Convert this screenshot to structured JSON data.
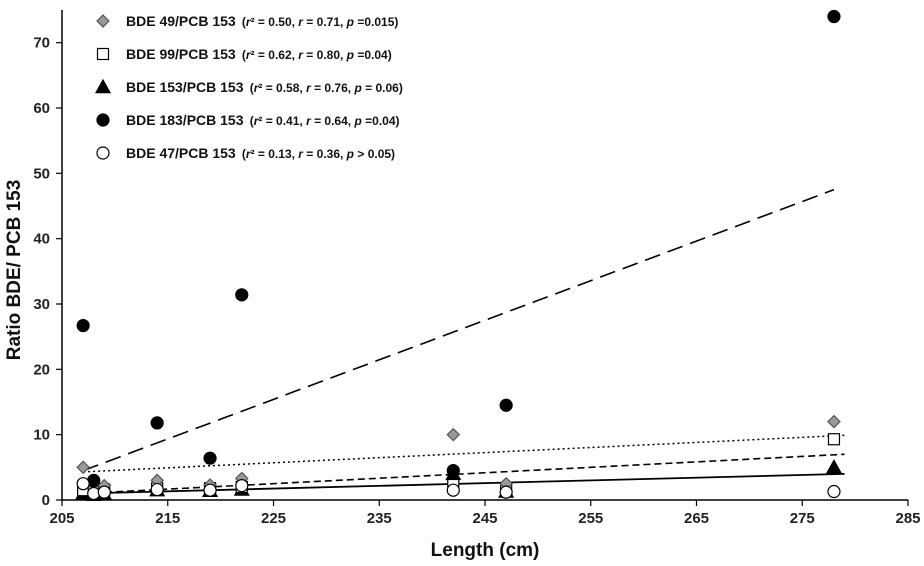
{
  "chart_data": {
    "type": "scatter",
    "xlabel": "Length (cm)",
    "ylabel": "Ratio BDE/ PCB 153",
    "xlim": [
      205,
      285
    ],
    "ylim": [
      0,
      75
    ],
    "xticks": [
      "205",
      "215",
      "225",
      "235",
      "245",
      "255",
      "265",
      "275",
      "285"
    ],
    "yticks": [
      "0",
      "10",
      "20",
      "30",
      "40",
      "50",
      "60",
      "70"
    ],
    "grid": false,
    "legend_position": "top-left",
    "series": [
      {
        "name": "BDE 49/PCB 153",
        "marker": "diamond",
        "fill": "#999999",
        "stroke": "#555555",
        "stats": {
          "r2": "0.50",
          "r": "0.71",
          "p": "=0.015"
        },
        "trendline": {
          "style": "dotted",
          "from": [
            207,
            4.3
          ],
          "to": [
            279,
            9.9
          ]
        },
        "points": [
          [
            207,
            5.0
          ],
          [
            208,
            2.5
          ],
          [
            209,
            2.2
          ],
          [
            214,
            3.0
          ],
          [
            219,
            2.3
          ],
          [
            222,
            3.3
          ],
          [
            242,
            10.0
          ],
          [
            247,
            2.5
          ],
          [
            278,
            12.0
          ]
        ]
      },
      {
        "name": "BDE 99/PCB 153",
        "marker": "square",
        "fill": "#ffffff",
        "stroke": "#000000",
        "stats": {
          "r2": "0.62",
          "r": "0.80",
          "p": "=0.04"
        },
        "trendline": {
          "style": "short-dash",
          "from": [
            207,
            1.0
          ],
          "to": [
            279,
            7.0
          ]
        },
        "points": [
          [
            207,
            1.5
          ],
          [
            208,
            1.2
          ],
          [
            209,
            1.6
          ],
          [
            214,
            1.8
          ],
          [
            219,
            1.8
          ],
          [
            222,
            2.0
          ],
          [
            242,
            2.3
          ],
          [
            247,
            1.5
          ],
          [
            278,
            9.3
          ]
        ]
      },
      {
        "name": "BDE 153/PCB 153",
        "marker": "triangle",
        "fill": "#000000",
        "stroke": "#000000",
        "stats": {
          "r2": "0.58",
          "r": "0.76",
          "p": "= 0.06"
        },
        "trendline": {
          "style": "solid",
          "from": [
            207,
            1.0
          ],
          "to": [
            279,
            4.0
          ]
        },
        "points": [
          [
            207,
            1.0
          ],
          [
            208,
            0.8
          ],
          [
            209,
            0.9
          ],
          [
            214,
            1.5
          ],
          [
            219,
            1.4
          ],
          [
            222,
            1.6
          ],
          [
            242,
            4.0
          ],
          [
            247,
            1.3
          ],
          [
            278,
            5.0
          ]
        ]
      },
      {
        "name": "BDE 183/PCB 153",
        "marker": "circle",
        "fill": "#000000",
        "stroke": "#000000",
        "stats": {
          "r2": "0.41",
          "r": "0.64",
          "p": "=0.04"
        },
        "trendline": {
          "style": "long-dash",
          "from": [
            207,
            4.5
          ],
          "to": [
            278,
            47.5
          ]
        },
        "points": [
          [
            207,
            26.7
          ],
          [
            208,
            3.0
          ],
          [
            214,
            11.8
          ],
          [
            219,
            6.4
          ],
          [
            222,
            31.4
          ],
          [
            242,
            4.5
          ],
          [
            247,
            14.5
          ],
          [
            278,
            74.0
          ]
        ]
      },
      {
        "name": "BDE 47/PCB 153",
        "marker": "circle",
        "fill": "#ffffff",
        "stroke": "#000000",
        "stats": {
          "r2": "0.13",
          "r": "0.36",
          "p": "> 0.05"
        },
        "trendline": null,
        "points": [
          [
            207,
            2.5
          ],
          [
            208,
            1.0
          ],
          [
            209,
            1.2
          ],
          [
            214,
            1.6
          ],
          [
            219,
            1.5
          ],
          [
            222,
            2.2
          ],
          [
            242,
            1.5
          ],
          [
            247,
            1.2
          ],
          [
            278,
            1.3
          ]
        ]
      }
    ]
  }
}
